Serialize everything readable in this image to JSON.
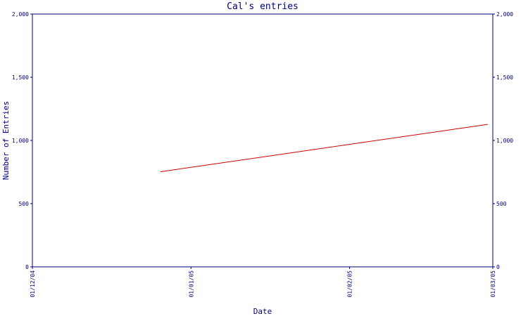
{
  "chart_data": {
    "type": "line",
    "title": "Cal's entries",
    "xlabel": "Date",
    "ylabel": "Number of Entries",
    "x_ticks": [
      "01/12/04",
      "01/01/05",
      "01/02/05",
      "01/03/05"
    ],
    "y_ticks": [
      "0",
      "500",
      "1,000",
      "1,500",
      "2,000"
    ],
    "xlim": [
      "2004-12-01",
      "2005-03-01"
    ],
    "ylim": [
      0,
      2000
    ],
    "grid": false,
    "legend": "none",
    "series": [
      {
        "x": [
          "2004-12-26",
          "2005-02-28"
        ],
        "values": [
          752,
          1127
        ],
        "color": "#cc0000"
      }
    ],
    "axis_color": "#00007f"
  }
}
